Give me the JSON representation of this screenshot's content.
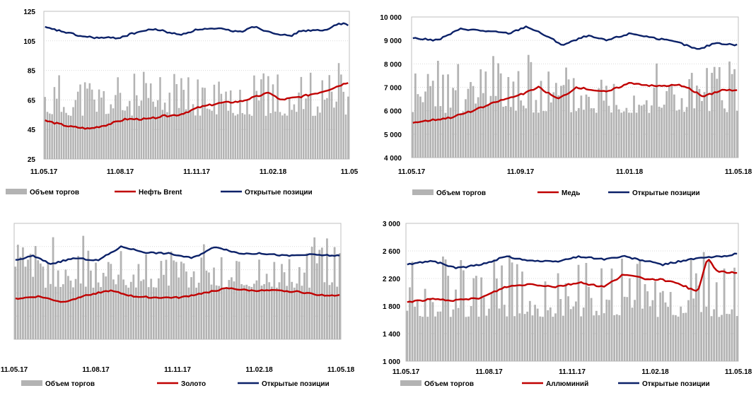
{
  "colors": {
    "volume": "#b3b3b3",
    "price": "#c00000",
    "oi": "#0b2168",
    "grid": "#d9d9d9"
  },
  "chart_data": [
    {
      "type": "line",
      "series": [
        {
          "name": "Объем торгов",
          "kind": "bar",
          "values_mode": "volume"
        },
        {
          "name": "Нефть Brent",
          "kind": "line"
        },
        {
          "name": "Открытые позиции",
          "kind": "line"
        }
      ],
      "ylim": [
        25,
        125
      ],
      "yticks": [
        "25",
        "45",
        "65",
        "85",
        "105",
        "125"
      ],
      "xticks": [
        "11.05.17",
        "11.08.17",
        "11.11.17",
        "11.02.18",
        "11.05.18"
      ],
      "xtick_display": [
        "11.05.17",
        "11.08.17",
        "11.11.17",
        "11.02.18",
        "11.05"
      ],
      "price_path": [
        [
          0,
          51
        ],
        [
          10,
          47
        ],
        [
          18,
          45.5
        ],
        [
          25,
          48
        ],
        [
          33,
          52
        ],
        [
          42,
          52
        ],
        [
          48,
          54
        ],
        [
          55,
          55
        ],
        [
          63,
          60
        ],
        [
          72,
          63
        ],
        [
          80,
          64
        ],
        [
          88,
          68
        ],
        [
          92,
          70
        ],
        [
          96,
          65
        ],
        [
          104,
          67
        ],
        [
          112,
          70
        ],
        [
          116,
          72
        ],
        [
          124,
          77
        ]
      ],
      "oi_path": [
        [
          0,
          114
        ],
        [
          8,
          111
        ],
        [
          15,
          108
        ],
        [
          22,
          107
        ],
        [
          30,
          107
        ],
        [
          38,
          111
        ],
        [
          45,
          113
        ],
        [
          55,
          109
        ],
        [
          63,
          113
        ],
        [
          72,
          113
        ],
        [
          80,
          111
        ],
        [
          85,
          115
        ],
        [
          90,
          112
        ],
        [
          95,
          110
        ],
        [
          100,
          108
        ],
        [
          105,
          112
        ],
        [
          115,
          112
        ],
        [
          120,
          117
        ],
        [
          124,
          116
        ]
      ],
      "volume_range": [
        35,
        90
      ]
    },
    {
      "type": "line",
      "series": [
        {
          "name": "Объем торгов",
          "kind": "bar"
        },
        {
          "name": "Медь",
          "kind": "line"
        },
        {
          "name": "Открытые позиции",
          "kind": "line"
        }
      ],
      "ylim": [
        4000,
        10000
      ],
      "yticks": [
        "4 000",
        "5 000",
        "6 000",
        "7 000",
        "8 000",
        "9 000",
        "10 000"
      ],
      "xticks": [
        "11.05.17",
        "11.09.17",
        "11.01.18",
        "11.05.18"
      ],
      "price_path": [
        [
          0,
          5500
        ],
        [
          15,
          5700
        ],
        [
          25,
          6000
        ],
        [
          35,
          6400
        ],
        [
          45,
          6700
        ],
        [
          52,
          7000
        ],
        [
          60,
          6500
        ],
        [
          68,
          7000
        ],
        [
          80,
          6800
        ],
        [
          90,
          7200
        ],
        [
          100,
          7050
        ],
        [
          110,
          7100
        ],
        [
          115,
          6900
        ],
        [
          120,
          6600
        ],
        [
          128,
          6900
        ],
        [
          134,
          6850
        ]
      ],
      "oi_path": [
        [
          0,
          9100
        ],
        [
          10,
          9000
        ],
        [
          20,
          9500
        ],
        [
          30,
          9400
        ],
        [
          40,
          9300
        ],
        [
          47,
          9600
        ],
        [
          55,
          9200
        ],
        [
          62,
          8800
        ],
        [
          72,
          9200
        ],
        [
          80,
          9000
        ],
        [
          90,
          9300
        ],
        [
          100,
          9100
        ],
        [
          110,
          8900
        ],
        [
          118,
          8600
        ],
        [
          125,
          8900
        ],
        [
          134,
          8800
        ]
      ],
      "volume_range": [
        4400,
        8700
      ]
    },
    {
      "type": "line",
      "series": [
        {
          "name": "Объем торгов",
          "kind": "bar"
        },
        {
          "name": "Золото",
          "kind": "line"
        },
        {
          "name": "Открытые позиции",
          "kind": "line"
        }
      ],
      "xticks": [
        "11.05.17",
        "11.08.17",
        "11.11.17",
        "11.02.18",
        "11.05.18"
      ],
      "ylim": [
        0,
        100
      ],
      "price_path": [
        [
          0,
          35
        ],
        [
          8,
          37
        ],
        [
          16,
          32
        ],
        [
          24,
          38
        ],
        [
          32,
          42
        ],
        [
          40,
          37
        ],
        [
          48,
          36
        ],
        [
          56,
          36
        ],
        [
          64,
          40
        ],
        [
          72,
          44
        ],
        [
          80,
          42
        ],
        [
          88,
          42
        ],
        [
          96,
          41
        ],
        [
          104,
          38
        ],
        [
          110,
          38
        ]
      ],
      "oi_path": [
        [
          0,
          68
        ],
        [
          6,
          72
        ],
        [
          12,
          65
        ],
        [
          20,
          70
        ],
        [
          28,
          68
        ],
        [
          36,
          80
        ],
        [
          44,
          75
        ],
        [
          52,
          74
        ],
        [
          60,
          70
        ],
        [
          68,
          80
        ],
        [
          76,
          74
        ],
        [
          84,
          74
        ],
        [
          92,
          72
        ],
        [
          100,
          73
        ],
        [
          110,
          72
        ]
      ],
      "volume_range": [
        20,
        90
      ]
    },
    {
      "type": "line",
      "series": [
        {
          "name": "Объем торгов",
          "kind": "bar"
        },
        {
          "name": "Аллюминий",
          "kind": "line"
        },
        {
          "name": "Открытые позиции",
          "kind": "line"
        }
      ],
      "ylim": [
        1000,
        3000
      ],
      "yticks": [
        "1 000",
        "1 400",
        "1 800",
        "2 200",
        "2 600",
        "3 000"
      ],
      "xticks": [
        "11.05.17",
        "11.08.17",
        "11.11.17",
        "11.02.18",
        "11.05.18"
      ],
      "price_path": [
        [
          0,
          1860
        ],
        [
          10,
          1900
        ],
        [
          20,
          1880
        ],
        [
          30,
          1920
        ],
        [
          40,
          2080
        ],
        [
          50,
          2120
        ],
        [
          60,
          2080
        ],
        [
          70,
          2140
        ],
        [
          80,
          2080
        ],
        [
          88,
          2260
        ],
        [
          96,
          2200
        ],
        [
          104,
          2180
        ],
        [
          112,
          2100
        ],
        [
          118,
          2000
        ],
        [
          122,
          2500
        ],
        [
          126,
          2300
        ],
        [
          134,
          2280
        ]
      ],
      "oi_path": [
        [
          0,
          2400
        ],
        [
          10,
          2460
        ],
        [
          20,
          2350
        ],
        [
          30,
          2400
        ],
        [
          40,
          2520
        ],
        [
          50,
          2460
        ],
        [
          60,
          2440
        ],
        [
          70,
          2520
        ],
        [
          80,
          2480
        ],
        [
          88,
          2520
        ],
        [
          96,
          2460
        ],
        [
          104,
          2400
        ],
        [
          112,
          2460
        ],
        [
          120,
          2500
        ],
        [
          128,
          2520
        ],
        [
          134,
          2560
        ]
      ],
      "volume_range": [
        1100,
        2650
      ]
    }
  ]
}
